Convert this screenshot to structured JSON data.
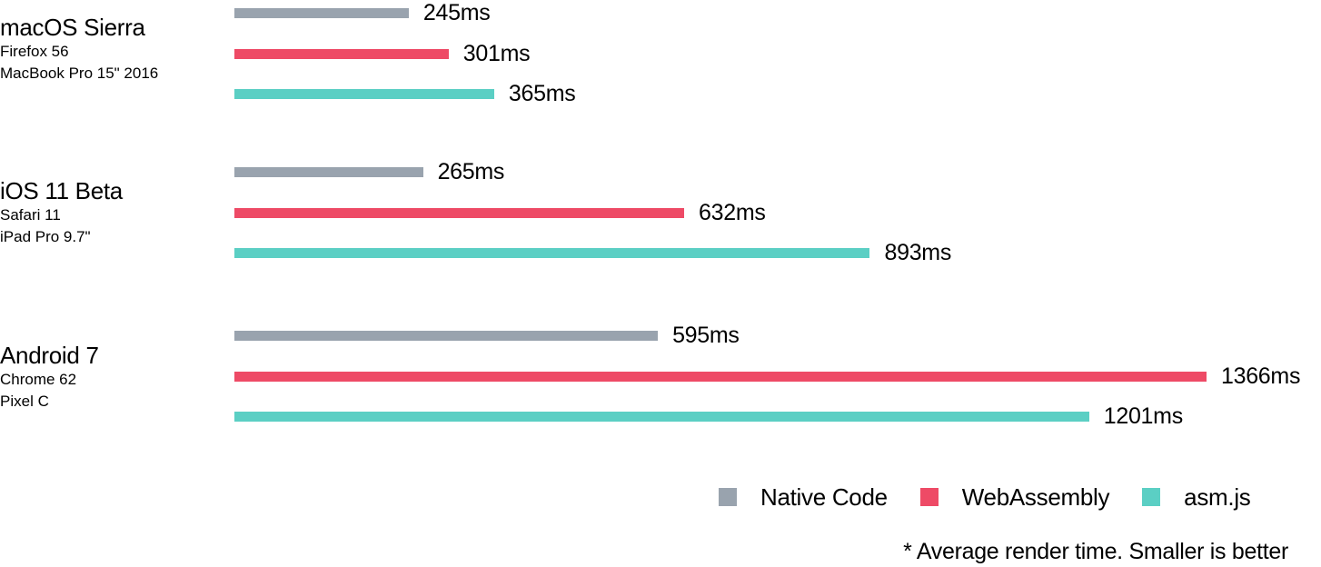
{
  "colors": {
    "native": "#99a3ae",
    "wasm": "#ee4a66",
    "asmjs": "#5bcfc4"
  },
  "chart_data": {
    "type": "bar",
    "orientation": "horizontal",
    "unit": "ms",
    "categories": [
      {
        "platform": "macOS Sierra",
        "browser": "Firefox 56",
        "device": "MacBook Pro 15\" 2016"
      },
      {
        "platform": "iOS 11 Beta",
        "browser": "Safari 11",
        "device": "iPad Pro 9.7\""
      },
      {
        "platform": "Android 7",
        "browser": "Chrome 62",
        "device": "Pixel C"
      }
    ],
    "series": [
      {
        "name": "Native Code",
        "color": "#99a3ae",
        "values": [
          245,
          265,
          595
        ],
        "labels": [
          "245ms",
          "265ms",
          "595ms"
        ]
      },
      {
        "name": "WebAssembly",
        "color": "#ee4a66",
        "values": [
          301,
          632,
          1366
        ],
        "labels": [
          "301ms",
          "632ms",
          "1366ms"
        ]
      },
      {
        "name": "asm.js",
        "color": "#5bcfc4",
        "values": [
          365,
          893,
          1201
        ],
        "labels": [
          "365ms",
          "893ms",
          "1201ms"
        ]
      }
    ],
    "xlim": [
      0,
      1366
    ],
    "grid": false,
    "legend_position": "bottom-right",
    "footnote": "* Average render time. Smaller is better"
  }
}
